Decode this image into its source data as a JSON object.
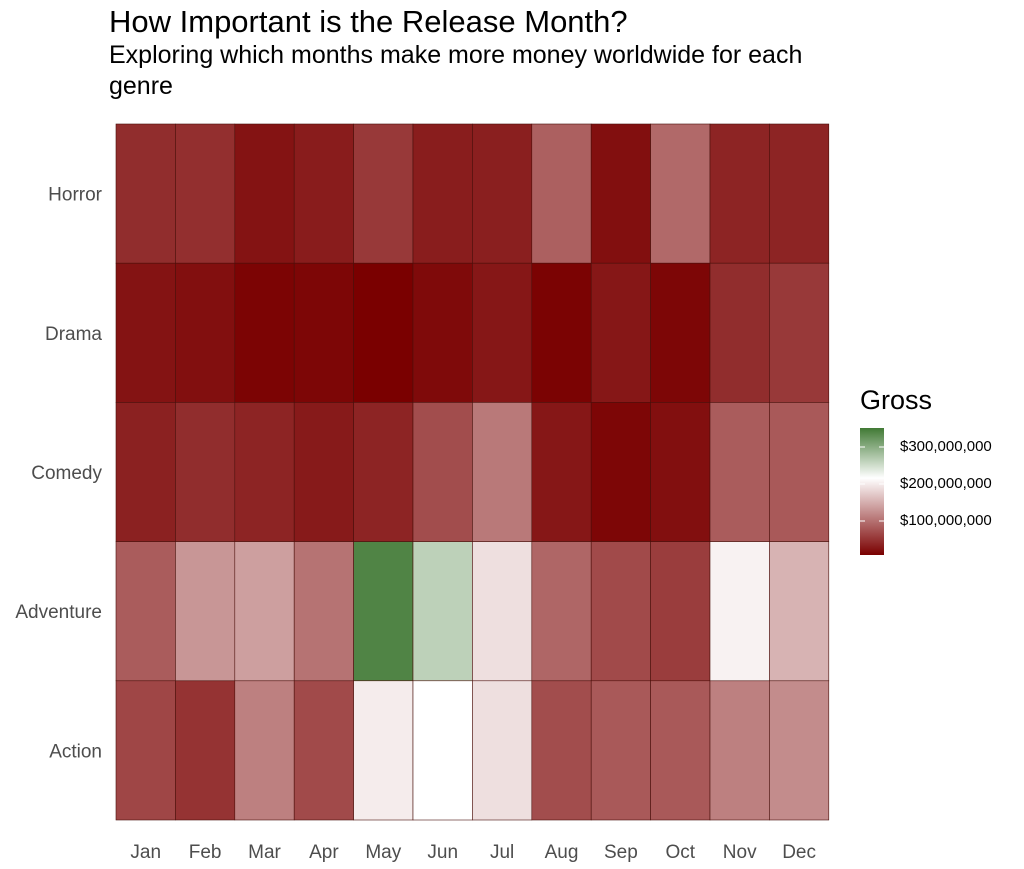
{
  "title": "How Important is the Release Month?",
  "subtitle": "Exploring which months make more money worldwide for each genre",
  "chart_data": {
    "type": "heatmap",
    "title": "How Important is the Release Month?",
    "subtitle": "Exploring which months make more money worldwide for each genre",
    "x": [
      "Jan",
      "Feb",
      "Mar",
      "Apr",
      "May",
      "Jun",
      "Jul",
      "Aug",
      "Sep",
      "Oct",
      "Nov",
      "Dec"
    ],
    "y": [
      "Horror",
      "Drama",
      "Comedy",
      "Adventure",
      "Action"
    ],
    "values": [
      [
        35,
        37,
        15,
        22,
        45,
        23,
        24,
        75,
        12,
        82,
        28,
        28
      ],
      [
        15,
        12,
        3,
        5,
        0,
        8,
        18,
        2,
        18,
        5,
        35,
        45
      ],
      [
        26,
        35,
        28,
        20,
        28,
        60,
        95,
        18,
        5,
        12,
        72,
        70
      ],
      [
        72,
        118,
        125,
        90,
        320,
        245,
        175,
        80,
        58,
        48,
        190,
        140
      ],
      [
        55,
        40,
        100,
        58,
        185,
        200,
        175,
        60,
        70,
        70,
        100,
        110
      ]
    ],
    "legend": {
      "title": "Gross",
      "labels": [
        "$300,000,000",
        "$200,000,000",
        "$100,000,000"
      ],
      "ticks": [
        300000000,
        200000000,
        100000000
      ],
      "position": "right",
      "colors": {
        "low": "#7a0000",
        "mid": "#ffffff",
        "high": "#417a35"
      }
    },
    "value_unit": "millions of dollars",
    "color_range": [
      0,
      330
    ],
    "color_midpoint": 200,
    "grid": false
  }
}
